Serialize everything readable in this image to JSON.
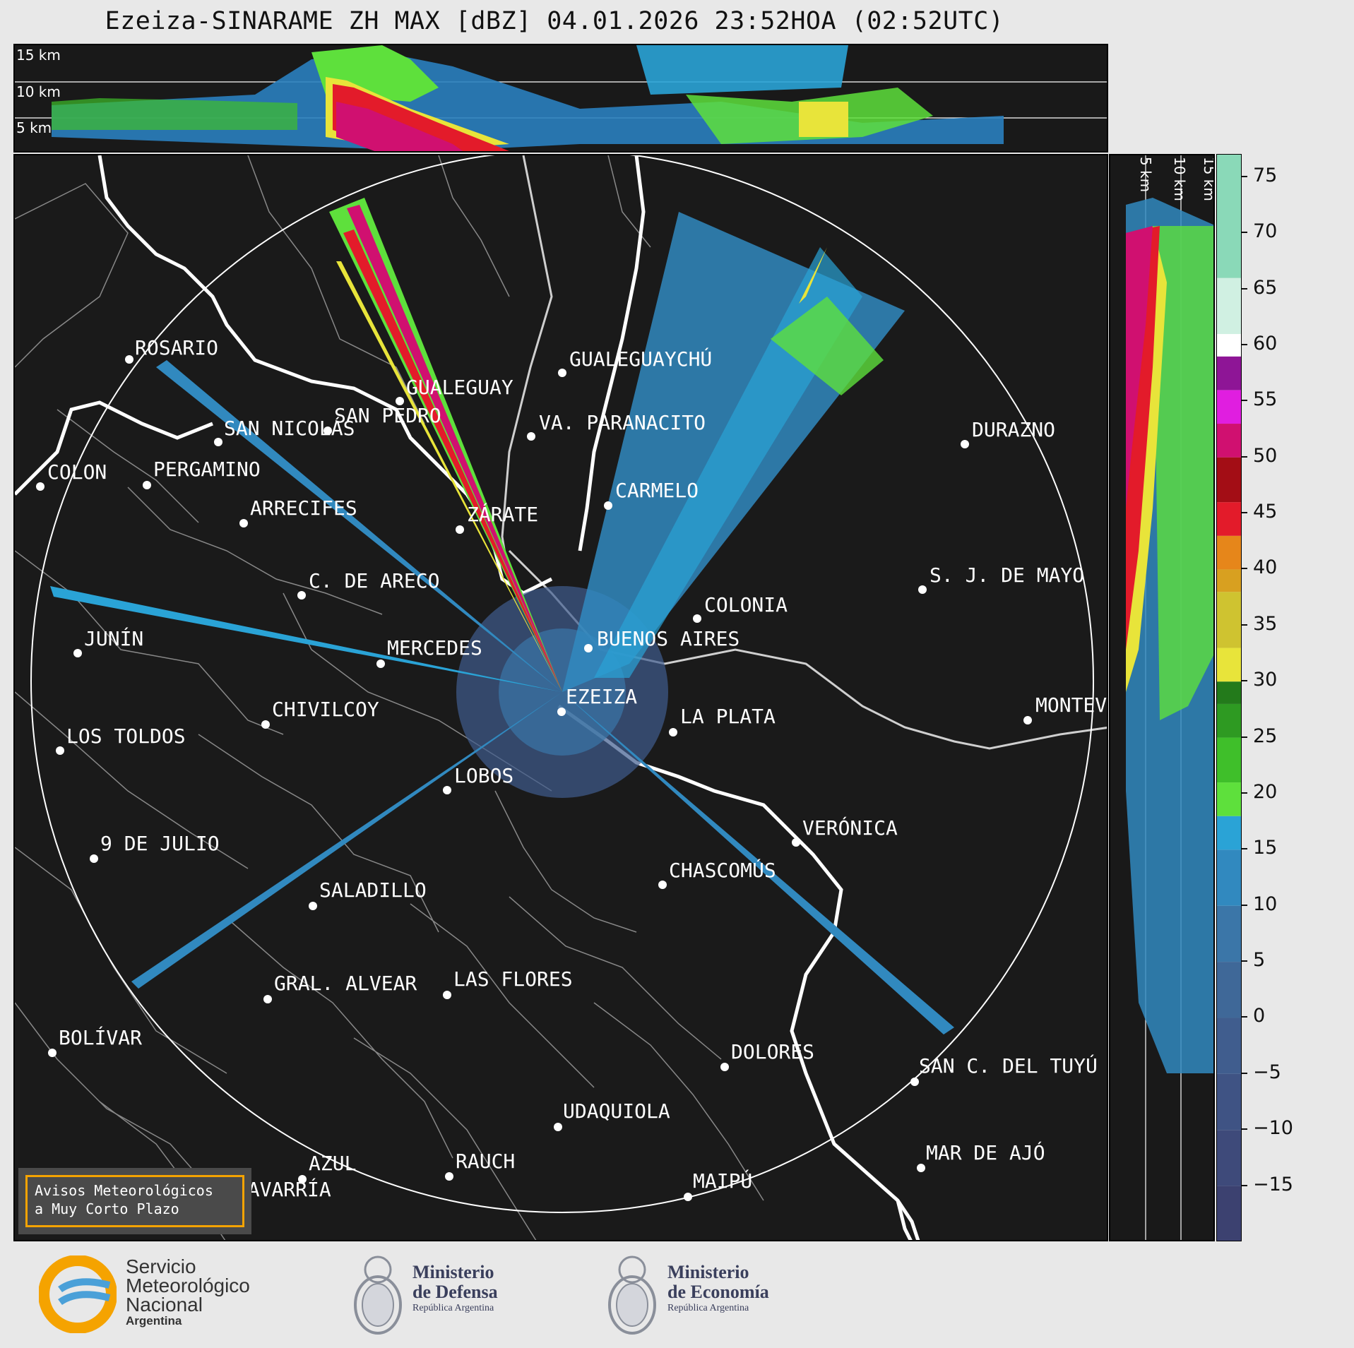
{
  "title": "Ezeiza-SINARAME ZH MAX [dBZ] 04.01.2026 23:52HOA (02:52UTC)",
  "top_profile": {
    "km_labels": [
      "15 km",
      "10 km",
      "5 km"
    ]
  },
  "side_profile": {
    "km_labels": [
      "5 km",
      "10 km",
      "15 km"
    ]
  },
  "colorbar": {
    "ticks": [
      "75",
      "70",
      "65",
      "60",
      "55",
      "50",
      "45",
      "40",
      "35",
      "30",
      "25",
      "20",
      "15",
      "10",
      "5",
      "0",
      "−5",
      "−10",
      "−15"
    ],
    "range": [
      -20,
      77
    ],
    "colors": [
      {
        "from": -20,
        "to": -15,
        "hex": "#3c4170"
      },
      {
        "from": -15,
        "to": -10,
        "hex": "#3e4a7a"
      },
      {
        "from": -10,
        "to": -5,
        "hex": "#3f5384"
      },
      {
        "from": -5,
        "to": 0,
        "hex": "#405d8e"
      },
      {
        "from": 0,
        "to": 5,
        "hex": "#3f6898"
      },
      {
        "from": 5,
        "to": 10,
        "hex": "#3b76a8"
      },
      {
        "from": 10,
        "to": 15,
        "hex": "#3189bf"
      },
      {
        "from": 15,
        "to": 18,
        "hex": "#2aa3d6"
      },
      {
        "from": 18,
        "to": 21,
        "hex": "#5ee03c"
      },
      {
        "from": 21,
        "to": 25,
        "hex": "#3fbf2a"
      },
      {
        "from": 25,
        "to": 28,
        "hex": "#2e9a22"
      },
      {
        "from": 28,
        "to": 30,
        "hex": "#237a1b"
      },
      {
        "from": 30,
        "to": 33,
        "hex": "#e8e43a"
      },
      {
        "from": 33,
        "to": 38,
        "hex": "#cfc330"
      },
      {
        "from": 38,
        "to": 40,
        "hex": "#d8a020"
      },
      {
        "from": 40,
        "to": 43,
        "hex": "#e6861a"
      },
      {
        "from": 43,
        "to": 46,
        "hex": "#e31b2a"
      },
      {
        "from": 46,
        "to": 50,
        "hex": "#a30d15"
      },
      {
        "from": 50,
        "to": 53,
        "hex": "#d01070"
      },
      {
        "from": 53,
        "to": 56,
        "hex": "#e01ee0"
      },
      {
        "from": 56,
        "to": 59,
        "hex": "#8e1596"
      },
      {
        "from": 59,
        "to": 61,
        "hex": "#ffffff"
      },
      {
        "from": 61,
        "to": 66,
        "hex": "#d0f0e2"
      },
      {
        "from": 66,
        "to": 77,
        "hex": "#8ad9b8"
      }
    ]
  },
  "cities": [
    {
      "name": "ROSARIO"
    },
    {
      "name": "GUALEGUAYCHÚ"
    },
    {
      "name": "GUALEGUAY"
    },
    {
      "name": "SAN NICOLÁS"
    },
    {
      "name": "DURAZNO"
    },
    {
      "name": "SAN PEDRO"
    },
    {
      "name": "VA. PARANACITO"
    },
    {
      "name": "COLON"
    },
    {
      "name": "PERGAMINO"
    },
    {
      "name": "CARMELO"
    },
    {
      "name": "ARRECIFES"
    },
    {
      "name": "ZÁRATE"
    },
    {
      "name": "S. J. DE MAYO"
    },
    {
      "name": "C. DE ARECO"
    },
    {
      "name": "COLONIA"
    },
    {
      "name": "JUNÍN"
    },
    {
      "name": "BUENOS AIRES"
    },
    {
      "name": "MERCEDES"
    },
    {
      "name": "EZEIZA"
    },
    {
      "name": "MONTEV"
    },
    {
      "name": "CHIVILCOY"
    },
    {
      "name": "LA PLATA"
    },
    {
      "name": "LOS TOLDOS"
    },
    {
      "name": "LOBOS"
    },
    {
      "name": "VERÓNICA"
    },
    {
      "name": "9 DE JULIO"
    },
    {
      "name": "CHASCOMÚS"
    },
    {
      "name": "SALADILLO"
    },
    {
      "name": "GRAL. ALVEAR"
    },
    {
      "name": "LAS FLORES"
    },
    {
      "name": "BOLÍVAR"
    },
    {
      "name": "DOLORES"
    },
    {
      "name": "SAN C. DEL TUYÚ"
    },
    {
      "name": "UDAQUIOLA"
    },
    {
      "name": "MAR DE AJÓ"
    },
    {
      "name": "AZUL"
    },
    {
      "name": "RAUCH"
    },
    {
      "name": "OLAVARRÍA"
    },
    {
      "name": "MAIPÚ"
    }
  ],
  "warning": {
    "line1": "Avisos Meteorológicos",
    "line2": "a Muy Corto Plazo"
  },
  "footer": {
    "smn": {
      "line1": "Servicio",
      "line2": "Meteorológico",
      "line3": "Nacional",
      "line4": "Argentina"
    },
    "defensa": {
      "line1": "Ministerio",
      "line2": "de Defensa",
      "line3": "República Argentina"
    },
    "economia": {
      "line1": "Ministerio",
      "line2": "de Economía",
      "line3": "República Argentina"
    }
  }
}
